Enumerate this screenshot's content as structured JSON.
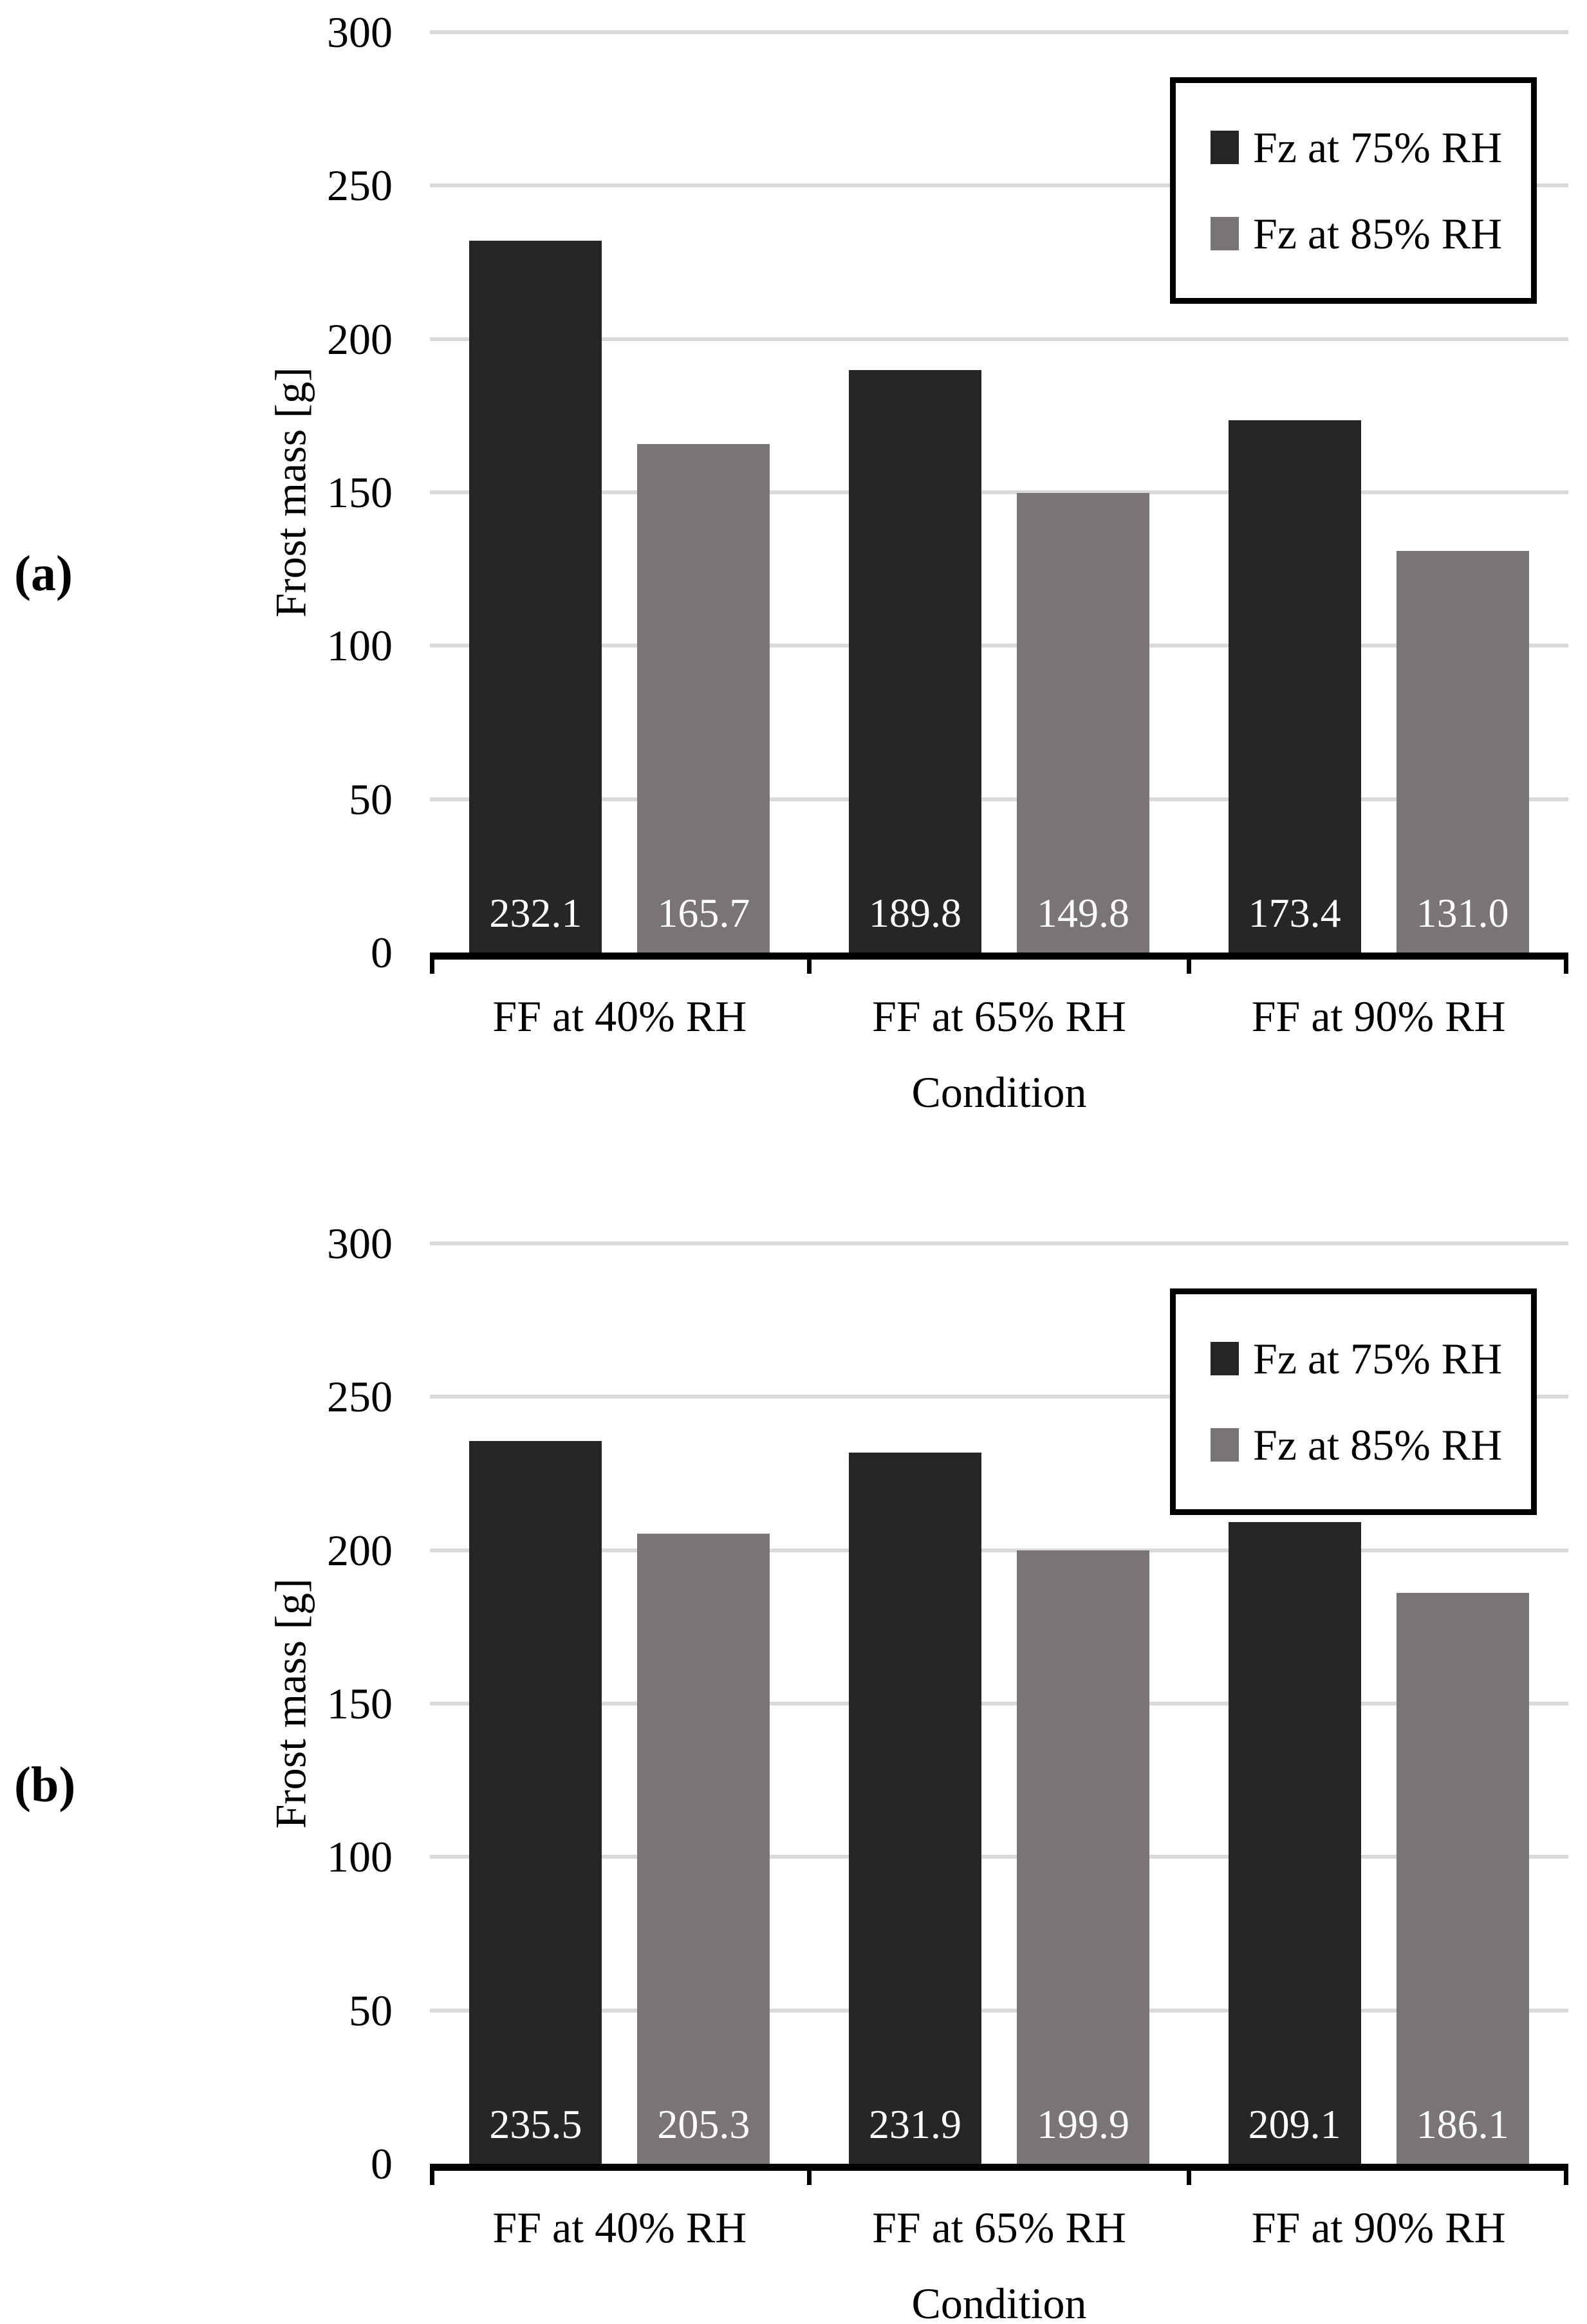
{
  "figure": {
    "background": "#ffffff"
  },
  "chart_data": [
    {
      "type": "bar",
      "panel_label": "(a)",
      "categories": [
        "FF at 40% RH",
        "FF at 65% RH",
        "FF at 90% RH"
      ],
      "series": [
        {
          "name": "Fz at 75% RH",
          "color": "#262626",
          "values": [
            232.1,
            189.8,
            173.4
          ]
        },
        {
          "name": "Fz at 85% RH",
          "color": "#7a7575",
          "values": [
            165.7,
            149.8,
            131.0
          ]
        }
      ],
      "xlabel": "Condition",
      "ylabel": "Frost mass [g]",
      "ylim": [
        0,
        300
      ],
      "yticks": [
        0,
        50,
        100,
        150,
        200,
        250,
        300
      ],
      "grid": "horizontal",
      "gridline_color": "#d9d9d9",
      "axis_color": "#000000",
      "value_label_color": "#ffffff",
      "value_label_decimals": 1,
      "legend": {
        "position": "top-right",
        "entries": [
          "Fz at 75% RH",
          "Fz at 85% RH"
        ]
      }
    },
    {
      "type": "bar",
      "panel_label": "(b)",
      "categories": [
        "FF at 40% RH",
        "FF at 65% RH",
        "FF at 90% RH"
      ],
      "series": [
        {
          "name": "Fz at 75% RH",
          "color": "#262626",
          "values": [
            235.5,
            231.9,
            209.1
          ]
        },
        {
          "name": "Fz at 85% RH",
          "color": "#7a7575",
          "values": [
            205.3,
            199.9,
            186.1
          ]
        }
      ],
      "xlabel": "Condition",
      "ylabel": "Frost mass [g]",
      "ylim": [
        0,
        300
      ],
      "yticks": [
        0,
        50,
        100,
        150,
        200,
        250,
        300
      ],
      "grid": "horizontal",
      "gridline_color": "#d9d9d9",
      "axis_color": "#000000",
      "value_label_color": "#ffffff",
      "value_label_decimals": 1,
      "legend": {
        "position": "top-right",
        "entries": [
          "Fz at 75% RH",
          "Fz at 85% RH"
        ]
      }
    }
  ]
}
